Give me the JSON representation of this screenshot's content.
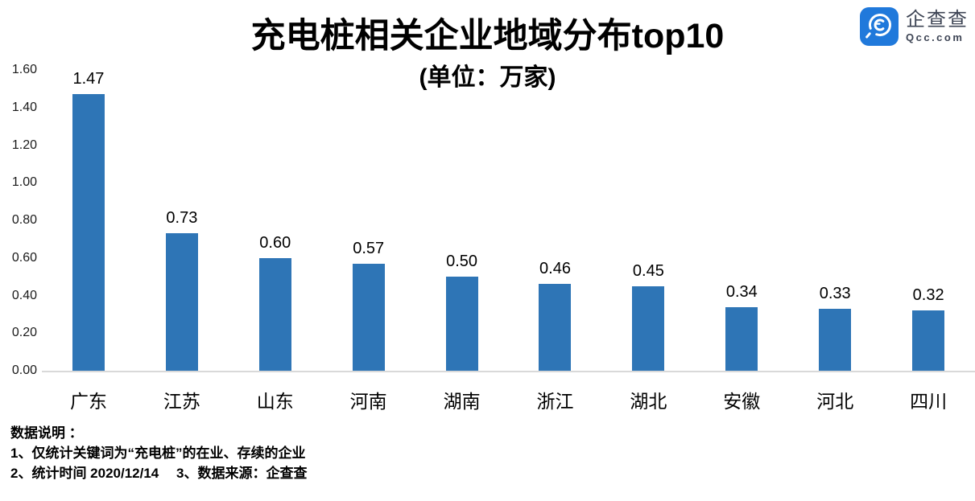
{
  "header": {
    "title": "充电桩相关企业地域分布top10",
    "subtitle": "(单位：万家)"
  },
  "logo": {
    "name": "企查查",
    "domain": "Qcc.com",
    "icon": "qcc-magnifier-icon",
    "icon_color": "#2079db",
    "text_color": "#3d4454"
  },
  "chart_data": {
    "type": "bar",
    "title": "充电桩相关企业地域分布top10",
    "subtitle": "(单位：万家)",
    "categories": [
      "广东",
      "江苏",
      "山东",
      "河南",
      "湖南",
      "浙江",
      "湖北",
      "安徽",
      "河北",
      "四川"
    ],
    "values": [
      1.47,
      0.73,
      0.6,
      0.57,
      0.5,
      0.46,
      0.45,
      0.34,
      0.33,
      0.32
    ],
    "value_labels": [
      "1.47",
      "0.73",
      "0.60",
      "0.57",
      "0.50",
      "0.46",
      "0.45",
      "0.34",
      "0.33",
      "0.32"
    ],
    "xlabel": "",
    "ylabel": "",
    "ylim": [
      0,
      1.6
    ],
    "yticks": [
      0.0,
      0.2,
      0.4,
      0.6,
      0.8,
      1.0,
      1.2,
      1.4,
      1.6
    ],
    "ytick_labels": [
      "0.00",
      "0.20",
      "0.40",
      "0.60",
      "0.80",
      "1.00",
      "1.20",
      "1.40",
      "1.60"
    ],
    "bar_color": "#2e75b6",
    "axis_line_color": "#d9d9d9",
    "grid": false,
    "legend": false
  },
  "footer": {
    "lines": [
      "数据说明 ：",
      "1、仅统计关键词为“充电桩”的在业、存续的企业",
      "2、统计时间 2020/12/14　 3、数据来源：企查查"
    ]
  }
}
